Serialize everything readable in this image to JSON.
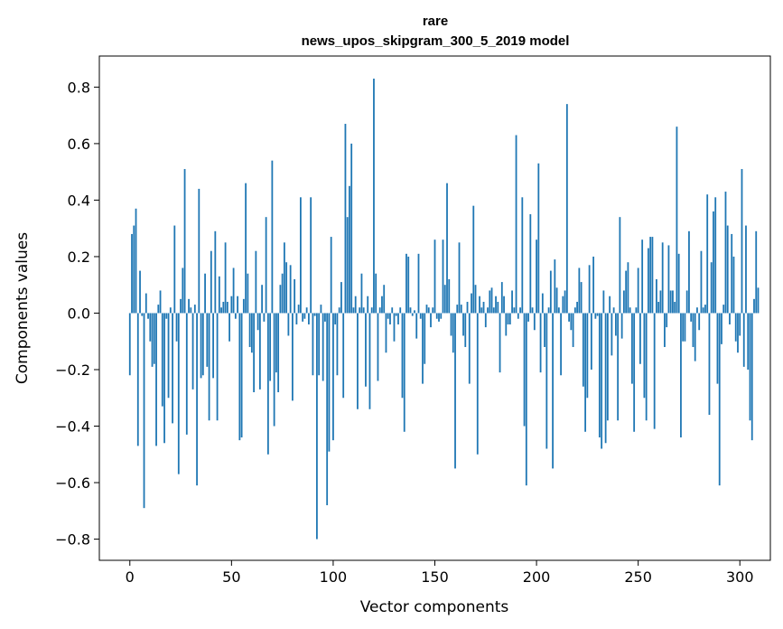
{
  "chart_data": {
    "type": "bar",
    "title_line1": "rare",
    "title_line2": "news_upos_skipgram_300_5_2019 model",
    "xlabel": "Vector components",
    "ylabel": "Components values",
    "xlim": [
      -15,
      315
    ],
    "ylim": [
      -0.875,
      0.91
    ],
    "xticks": [
      0,
      50,
      100,
      150,
      200,
      250,
      300
    ],
    "xtick_labels": [
      "0",
      "50",
      "100",
      "150",
      "200",
      "250",
      "300"
    ],
    "yticks": [
      -0.8,
      -0.6,
      -0.4,
      -0.2,
      0.0,
      0.2,
      0.4,
      0.6,
      0.8
    ],
    "ytick_labels": [
      "−0.8",
      "−0.6",
      "−0.4",
      "−0.2",
      "0.0",
      "0.2",
      "0.4",
      "0.6",
      "0.8"
    ],
    "bar_color": "#1f77b4",
    "values": [
      -0.22,
      0.28,
      0.31,
      0.37,
      -0.47,
      0.15,
      -0.01,
      -0.69,
      0.07,
      -0.02,
      -0.1,
      -0.19,
      -0.18,
      -0.47,
      0.03,
      0.08,
      -0.33,
      -0.46,
      -0.02,
      -0.3,
      0.02,
      -0.39,
      0.31,
      -0.1,
      -0.57,
      0.05,
      0.16,
      0.51,
      -0.43,
      0.05,
      0.02,
      -0.27,
      0.03,
      -0.61,
      0.44,
      -0.23,
      -0.22,
      0.14,
      -0.19,
      -0.38,
      0.22,
      -0.23,
      0.29,
      -0.38,
      0.13,
      0.02,
      0.04,
      0.25,
      0.04,
      -0.1,
      0.06,
      0.16,
      -0.02,
      0.06,
      -0.45,
      -0.44,
      0.05,
      0.46,
      0.14,
      -0.12,
      -0.14,
      -0.28,
      0.22,
      -0.06,
      -0.27,
      0.1,
      -0.03,
      0.34,
      -0.5,
      -0.24,
      0.54,
      -0.4,
      -0.21,
      -0.28,
      0.1,
      0.14,
      0.25,
      0.18,
      -0.08,
      0.17,
      -0.31,
      0.12,
      -0.04,
      0.03,
      0.41,
      -0.03,
      -0.02,
      0.02,
      -0.04,
      0.41,
      -0.22,
      -0.01,
      -0.8,
      -0.22,
      0.03,
      -0.24,
      -0.03,
      -0.68,
      -0.49,
      0.27,
      -0.45,
      -0.04,
      -0.22,
      0.02,
      0.11,
      -0.3,
      0.67,
      0.34,
      0.45,
      0.6,
      0.02,
      0.06,
      -0.34,
      0.02,
      0.14,
      0.02,
      -0.26,
      0.06,
      -0.34,
      0.02,
      0.83,
      0.14,
      -0.24,
      0.02,
      0.06,
      0.1,
      -0.14,
      -0.02,
      -0.04,
      0.02,
      -0.1,
      -0.01,
      -0.04,
      0.02,
      -0.3,
      -0.42,
      0.21,
      0.2,
      0.02,
      -0.01,
      0.01,
      -0.09,
      0.21,
      -0.02,
      -0.25,
      -0.18,
      0.03,
      0.02,
      -0.05,
      0.02,
      0.26,
      -0.02,
      -0.03,
      -0.02,
      0.26,
      0.1,
      0.46,
      0.12,
      -0.08,
      -0.14,
      -0.55,
      0.03,
      0.25,
      0.03,
      -0.08,
      -0.12,
      0.04,
      -0.25,
      0.07,
      0.38,
      0.1,
      -0.5,
      0.06,
      0.02,
      0.04,
      -0.05,
      0.02,
      0.08,
      0.09,
      0.02,
      0.06,
      0.04,
      -0.21,
      0.11,
      0.06,
      -0.08,
      -0.04,
      -0.04,
      0.08,
      0.02,
      0.63,
      -0.02,
      0.02,
      0.41,
      -0.4,
      -0.61,
      -0.03,
      0.35,
      0.02,
      -0.06,
      0.26,
      0.53,
      -0.21,
      0.07,
      -0.12,
      -0.48,
      0.02,
      0.15,
      -0.55,
      0.19,
      0.09,
      0.02,
      -0.22,
      0.06,
      0.08,
      0.74,
      -0.03,
      -0.06,
      -0.12,
      0.02,
      0.04,
      0.16,
      0.11,
      -0.26,
      -0.42,
      -0.3,
      0.17,
      -0.2,
      0.2,
      -0.02,
      -0.01,
      -0.44,
      -0.48,
      0.08,
      -0.46,
      -0.38,
      0.06,
      -0.15,
      0.02,
      -0.08,
      -0.38,
      0.34,
      -0.09,
      0.08,
      0.15,
      0.18,
      0.02,
      -0.25,
      -0.42,
      0.02,
      0.16,
      -0.18,
      0.26,
      -0.3,
      -0.38,
      0.23,
      0.27,
      0.27,
      -0.41,
      0.12,
      0.04,
      0.08,
      0.25,
      -0.12,
      -0.05,
      0.24,
      0.08,
      0.08,
      0.04,
      0.66,
      0.21,
      -0.44,
      -0.1,
      -0.1,
      0.08,
      0.29,
      -0.03,
      -0.12,
      -0.17,
      0.02,
      -0.06,
      0.22,
      0.02,
      0.03,
      0.42,
      -0.36,
      0.18,
      0.36,
      0.41,
      -0.25,
      -0.61,
      -0.11,
      0.03,
      0.43,
      0.31,
      -0.04,
      0.28,
      0.2,
      -0.1,
      -0.14,
      -0.08,
      0.51,
      -0.19,
      0.31,
      -0.2,
      -0.38,
      -0.45,
      0.05,
      0.29,
      0.09
    ]
  }
}
